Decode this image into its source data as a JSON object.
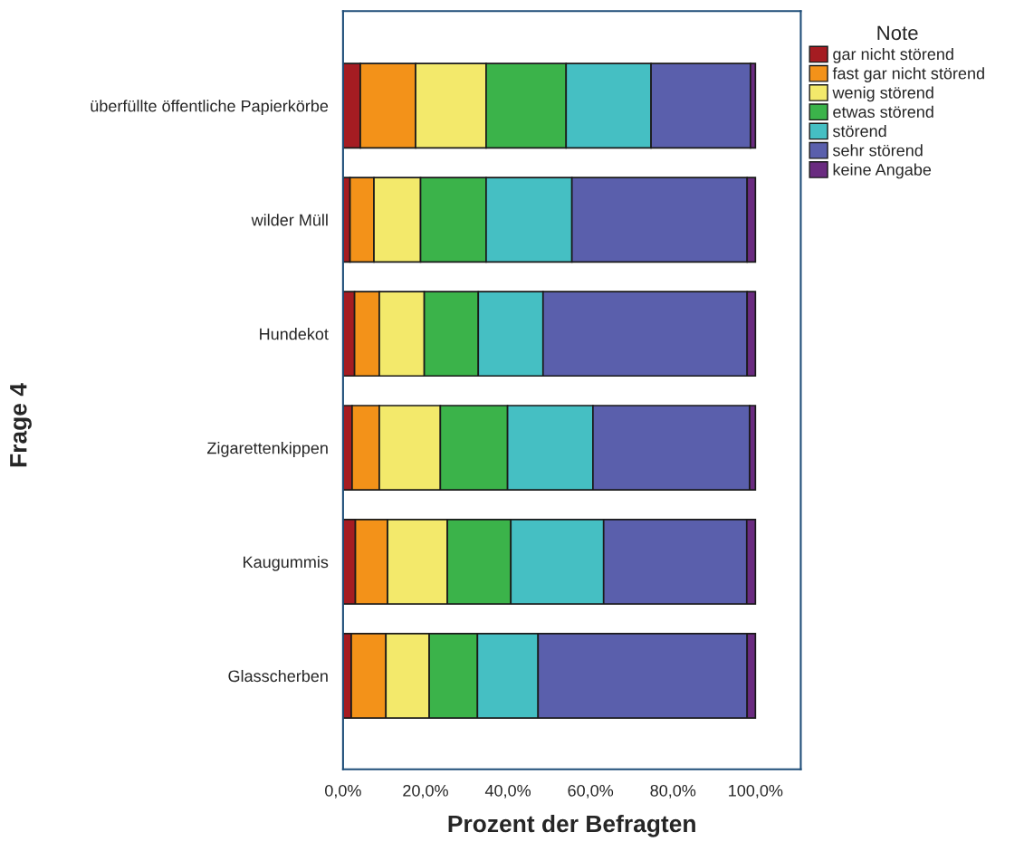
{
  "chart_data": {
    "type": "bar",
    "orientation": "horizontal",
    "stacked": true,
    "xlabel": "Prozent der Befragten",
    "ylabel": "Frage 4",
    "legend_title": "Note",
    "legend": "right",
    "grid": false,
    "categories": [
      "überfüllte öffentliche Papierkörbe",
      "wilder Müll",
      "Hundekot",
      "Zigarettenkippen",
      "Kaugummis",
      "Glasscherben"
    ],
    "xlim": [
      0,
      111
    ],
    "xticks": [
      {
        "value": 0,
        "label": "0,0%"
      },
      {
        "value": 20,
        "label": "20,0%"
      },
      {
        "value": 40,
        "label": "40,0%"
      },
      {
        "value": 60,
        "label": "60,0%"
      },
      {
        "value": 80,
        "label": "80,0%"
      },
      {
        "value": 100,
        "label": "100,0%"
      }
    ],
    "series": [
      {
        "name": "gar nicht störend",
        "color": "#a51c22",
        "values": [
          4.2,
          1.7,
          2.8,
          2.2,
          3.0,
          2.0
        ]
      },
      {
        "name": "fast gar nicht störend",
        "color": "#f39219",
        "values": [
          13.4,
          5.8,
          6.0,
          6.6,
          7.8,
          8.4
        ]
      },
      {
        "name": "wenig störend",
        "color": "#f3e96b",
        "values": [
          17.1,
          11.3,
          10.9,
          14.8,
          14.5,
          10.5
        ]
      },
      {
        "name": "etwas störend",
        "color": "#3bb34a",
        "values": [
          19.4,
          15.9,
          13.1,
          16.3,
          15.4,
          11.7
        ]
      },
      {
        "name": "störend",
        "color": "#45bfc3",
        "values": [
          20.6,
          20.8,
          15.7,
          20.7,
          22.5,
          14.7
        ]
      },
      {
        "name": "sehr störend",
        "color": "#5a5fac",
        "values": [
          24.1,
          42.5,
          49.5,
          38.0,
          34.7,
          50.7
        ]
      },
      {
        "name": "keine Angabe",
        "color": "#6a2b80",
        "values": [
          1.2,
          2.0,
          2.0,
          1.4,
          2.1,
          2.0
        ]
      }
    ]
  }
}
